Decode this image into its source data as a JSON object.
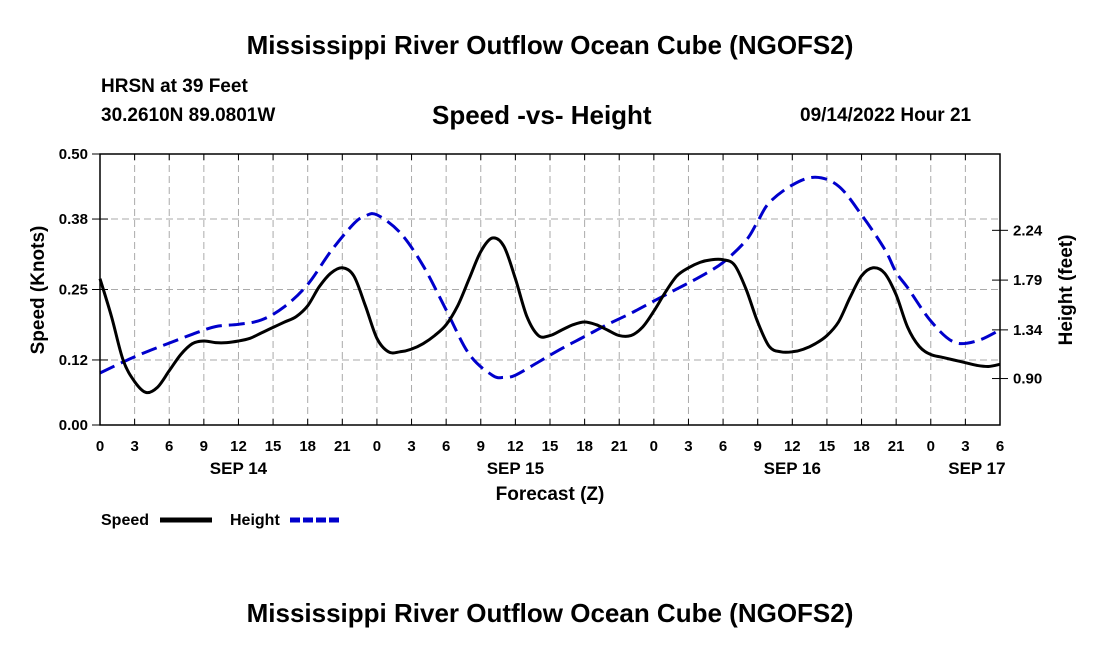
{
  "page": {
    "title": "Mississippi River Outflow Ocean Cube (NGOFS2)",
    "title_repeat": "Mississippi River Outflow Ocean Cube (NGOFS2)"
  },
  "header": {
    "station": "HRSN at 39 Feet",
    "coords": "30.2610N  89.0801W",
    "chart_title": "Speed -vs- Height",
    "datetime": "09/14/2022 Hour 21"
  },
  "colors": {
    "speed": "#000000",
    "height": "#0000cc",
    "grid": "#aaaaaa"
  },
  "chart_data": {
    "type": "line",
    "title": "Speed -vs- Height",
    "xlabel": "Forecast (Z)",
    "ylabel": "Speed (Knots)",
    "y2label": "Height (feet)",
    "xlim": [
      0,
      78
    ],
    "ylim": [
      0,
      0.5
    ],
    "y2lim": [
      0.48,
      2.93
    ],
    "yticks": [
      0.0,
      0.12,
      0.25,
      0.38,
      0.5
    ],
    "ytick_labels": [
      "0.00",
      "0.12",
      "0.25",
      "0.38",
      "0.50"
    ],
    "y2ticks": [
      0.9,
      1.34,
      1.79,
      2.24
    ],
    "y2tick_labels": [
      "0.90",
      "1.34",
      "1.79",
      "2.24"
    ],
    "xticks": [
      0,
      3,
      6,
      9,
      12,
      15,
      18,
      21,
      24,
      27,
      30,
      33,
      36,
      39,
      42,
      45,
      48,
      51,
      54,
      57,
      60,
      63,
      66,
      69,
      72,
      75,
      78
    ],
    "xtick_labels": [
      "0",
      "3",
      "6",
      "9",
      "12",
      "15",
      "18",
      "21",
      "0",
      "3",
      "6",
      "9",
      "12",
      "15",
      "18",
      "21",
      "0",
      "3",
      "6",
      "9",
      "12",
      "15",
      "18",
      "21",
      "0",
      "3",
      "6"
    ],
    "date_labels": [
      {
        "label": "SEP 14",
        "x": 12
      },
      {
        "label": "SEP 15",
        "x": 36
      },
      {
        "label": "SEP 16",
        "x": 60
      },
      {
        "label": "SEP 17",
        "x": 76
      }
    ],
    "grid": true,
    "legend": [
      {
        "name": "Speed",
        "style": "solid"
      },
      {
        "name": "Height",
        "style": "dashed"
      }
    ],
    "series": [
      {
        "name": "Speed",
        "axis": "left",
        "x": [
          0,
          1,
          2,
          3,
          4,
          5,
          6,
          7,
          8,
          9,
          10,
          11,
          12,
          13,
          14,
          15,
          16,
          17,
          18,
          19,
          20,
          21,
          22,
          23,
          24,
          25,
          26,
          27,
          28,
          29,
          30,
          31,
          32,
          33,
          34,
          35,
          36,
          37,
          38,
          39,
          40,
          41,
          42,
          43,
          44,
          45,
          46,
          47,
          48,
          49,
          50,
          51,
          52,
          53,
          54,
          55,
          56,
          57,
          58,
          59,
          60,
          61,
          62,
          63,
          64,
          65,
          66,
          67,
          68,
          69,
          70,
          71,
          72,
          73,
          74,
          75,
          76,
          77,
          78
        ],
        "values": [
          0.27,
          0.2,
          0.12,
          0.08,
          0.06,
          0.07,
          0.1,
          0.13,
          0.15,
          0.155,
          0.152,
          0.152,
          0.155,
          0.16,
          0.17,
          0.18,
          0.19,
          0.2,
          0.22,
          0.255,
          0.28,
          0.29,
          0.275,
          0.22,
          0.16,
          0.135,
          0.135,
          0.14,
          0.15,
          0.165,
          0.185,
          0.22,
          0.27,
          0.32,
          0.345,
          0.33,
          0.27,
          0.2,
          0.165,
          0.165,
          0.175,
          0.185,
          0.19,
          0.185,
          0.175,
          0.165,
          0.165,
          0.18,
          0.21,
          0.245,
          0.275,
          0.29,
          0.3,
          0.305,
          0.305,
          0.295,
          0.25,
          0.19,
          0.145,
          0.135,
          0.135,
          0.14,
          0.15,
          0.165,
          0.19,
          0.235,
          0.275,
          0.29,
          0.28,
          0.24,
          0.18,
          0.145,
          0.13,
          0.125,
          0.12,
          0.115,
          0.11,
          0.108,
          0.112
        ]
      },
      {
        "name": "Height",
        "axis": "right",
        "x": [
          0,
          2,
          4,
          6,
          8,
          10,
          12,
          14,
          16,
          18,
          20,
          22,
          23,
          24,
          26,
          28,
          30,
          32,
          34,
          35,
          36,
          38,
          40,
          42,
          44,
          46,
          48,
          50,
          52,
          54,
          56,
          57,
          58,
          60,
          62,
          64,
          66,
          68,
          69,
          70,
          72,
          74,
          76,
          78
        ],
        "values": [
          0.95,
          1.05,
          1.14,
          1.22,
          1.3,
          1.37,
          1.39,
          1.43,
          1.55,
          1.75,
          2.05,
          2.3,
          2.37,
          2.38,
          2.22,
          1.92,
          1.52,
          1.12,
          0.93,
          0.91,
          0.93,
          1.05,
          1.17,
          1.28,
          1.39,
          1.49,
          1.6,
          1.71,
          1.82,
          1.95,
          2.15,
          2.32,
          2.49,
          2.65,
          2.72,
          2.64,
          2.38,
          2.07,
          1.86,
          1.72,
          1.42,
          1.23,
          1.24,
          1.34
        ]
      }
    ]
  }
}
